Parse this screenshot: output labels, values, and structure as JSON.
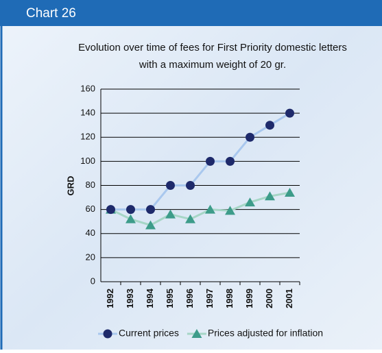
{
  "header": {
    "title": "Chart 26"
  },
  "chart_data": {
    "type": "line",
    "title": "Evolution over time of fees for First Priority domestic letters",
    "subtitle": "with a maximum weight of 20 gr.",
    "y_label": "GRD",
    "categories": [
      "1992",
      "1993",
      "1994",
      "1995",
      "1996",
      "1997",
      "1998",
      "1999",
      "2000",
      "2001"
    ],
    "series": [
      {
        "name": "Current prices",
        "marker": "circle",
        "color": "#1e2a6b",
        "line_color": "#a9c8ee",
        "values": [
          60,
          60,
          60,
          80,
          80,
          100,
          100,
          120,
          130,
          140
        ]
      },
      {
        "name": "Prices adjusted for inflation",
        "marker": "triangle",
        "color": "#3d9c8a",
        "line_color": "#a6d6c6",
        "values": [
          60,
          52,
          47,
          56,
          52,
          60,
          59,
          66,
          71,
          74
        ]
      }
    ],
    "ylim": [
      0,
      160
    ],
    "yticks": [
      0,
      20,
      40,
      60,
      80,
      100,
      120,
      140,
      160
    ],
    "grid": true,
    "legend": "bottom"
  }
}
